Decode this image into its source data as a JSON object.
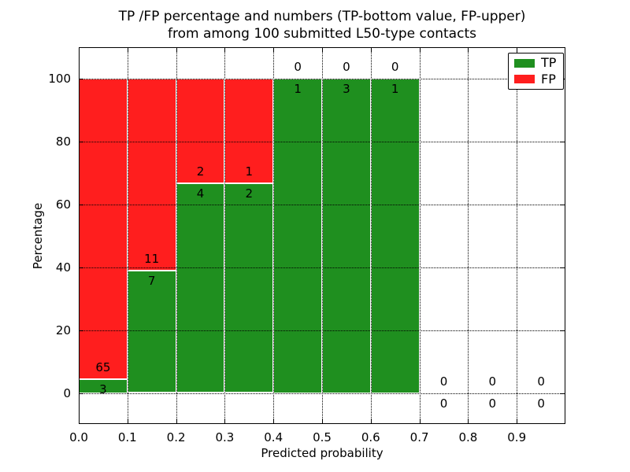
{
  "title": {
    "line1": "TP /FP percentage and numbers (TP-bottom value, FP-upper)",
    "line2": "from among 100 submitted L50-type contacts"
  },
  "axes": {
    "xlabel": "Predicted probability",
    "ylabel": "Percentage"
  },
  "legend": {
    "position": "upper right",
    "items": [
      {
        "label": "TP",
        "color": "#1f8f1f"
      },
      {
        "label": "FP",
        "color": "#ff1e1e"
      }
    ]
  },
  "colors": {
    "tp": "#1f8f1f",
    "fp": "#ff1e1e",
    "grid": "#000000",
    "axis": "#000000",
    "bar_edge": "#ffffff",
    "background": "#ffffff",
    "text": "#000000"
  },
  "chart_data": {
    "type": "bar",
    "stacked": true,
    "title": "TP /FP percentage and numbers (TP-bottom value, FP-upper) from among 100 submitted L50-type contacts",
    "xlabel": "Predicted probability",
    "ylabel": "Percentage",
    "xlim": [
      0.0,
      1.0
    ],
    "ylim": [
      -10,
      110
    ],
    "grid": true,
    "legend_position": "upper right",
    "x_tick_labels": [
      "0.0",
      "0.1",
      "0.2",
      "0.3",
      "0.4",
      "0.5",
      "0.6",
      "0.7",
      "0.8",
      "0.9"
    ],
    "y_ticks": [
      0,
      20,
      40,
      60,
      80,
      100
    ],
    "total_contacts": 100,
    "bins": [
      {
        "range": [
          0.0,
          0.1
        ],
        "tp": 3,
        "fp": 65,
        "tp_percent": 4.4,
        "fp_percent": 95.6
      },
      {
        "range": [
          0.1,
          0.2
        ],
        "tp": 7,
        "fp": 11,
        "tp_percent": 38.9,
        "fp_percent": 61.1
      },
      {
        "range": [
          0.2,
          0.3
        ],
        "tp": 4,
        "fp": 2,
        "tp_percent": 66.7,
        "fp_percent": 33.3
      },
      {
        "range": [
          0.3,
          0.4
        ],
        "tp": 2,
        "fp": 1,
        "tp_percent": 66.7,
        "fp_percent": 33.3
      },
      {
        "range": [
          0.4,
          0.5
        ],
        "tp": 1,
        "fp": 0,
        "tp_percent": 100,
        "fp_percent": 0
      },
      {
        "range": [
          0.5,
          0.6
        ],
        "tp": 3,
        "fp": 0,
        "tp_percent": 100,
        "fp_percent": 0
      },
      {
        "range": [
          0.6,
          0.7
        ],
        "tp": 1,
        "fp": 0,
        "tp_percent": 100,
        "fp_percent": 0
      },
      {
        "range": [
          0.7,
          0.8
        ],
        "tp": 0,
        "fp": 0,
        "tp_percent": 0,
        "fp_percent": 0
      },
      {
        "range": [
          0.8,
          0.9
        ],
        "tp": 0,
        "fp": 0,
        "tp_percent": 0,
        "fp_percent": 0
      },
      {
        "range": [
          0.9,
          1.0
        ],
        "tp": 0,
        "fp": 0,
        "tp_percent": 0,
        "fp_percent": 0
      }
    ],
    "series": [
      {
        "name": "TP",
        "color": "#1f8f1f",
        "counts": [
          3,
          7,
          4,
          2,
          1,
          3,
          1,
          0,
          0,
          0
        ]
      },
      {
        "name": "FP",
        "color": "#ff1e1e",
        "counts": [
          65,
          11,
          2,
          1,
          0,
          0,
          0,
          0,
          0,
          0
        ]
      }
    ]
  }
}
